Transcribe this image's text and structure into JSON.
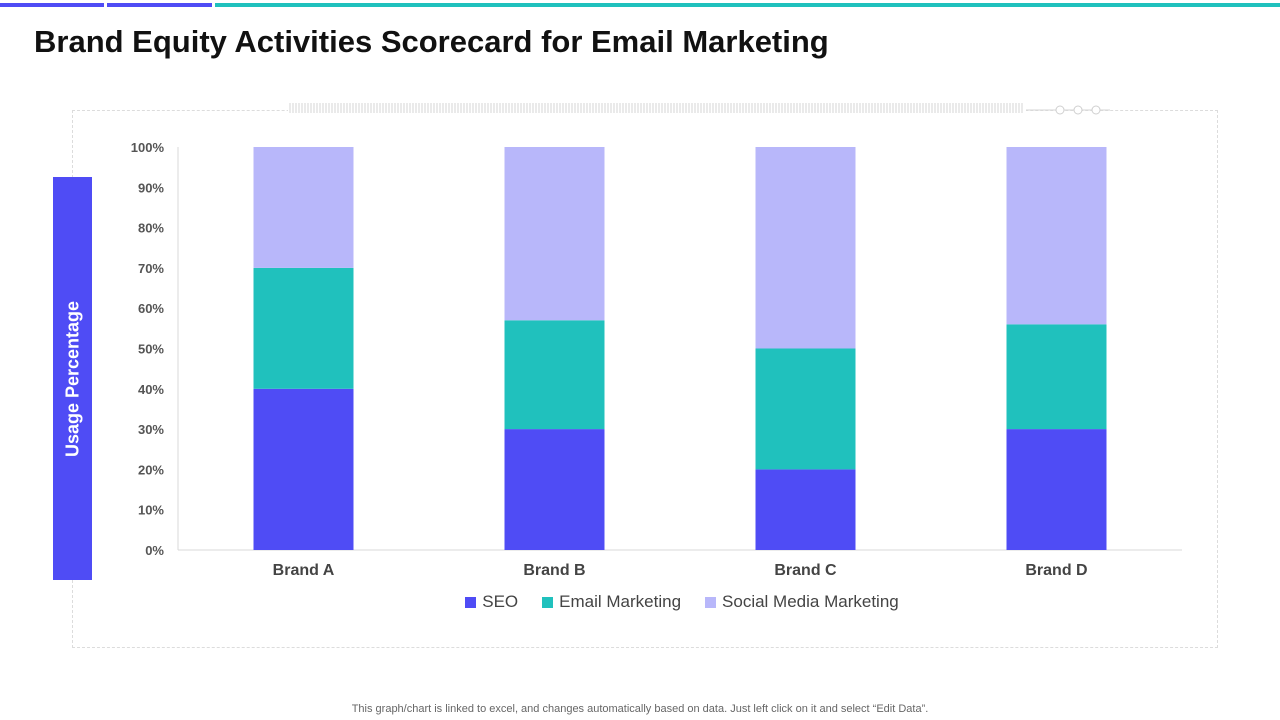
{
  "page": {
    "title": "Brand Equity Activities Scorecard for Email Marketing",
    "footer_note": "This graph/chart is linked to excel,  and changes automatically based on data. Just left click on it and select “Edit Data”."
  },
  "colors": {
    "seo": "#4f4cf5",
    "email": "#20c1bd",
    "social": "#b8b7fa",
    "topbar_purple": "#4f4cf5",
    "topbar_teal": "#20c1bd",
    "axis_label_bg": "#4f4cf5"
  },
  "chart_data": {
    "type": "bar",
    "stacked": true,
    "percent": true,
    "title": "",
    "xlabel": "",
    "ylabel": "Usage Percentage",
    "ylim": [
      0,
      100
    ],
    "yticks": [
      0,
      10,
      20,
      30,
      40,
      50,
      60,
      70,
      80,
      90,
      100
    ],
    "ytick_labels": [
      "0%",
      "10%",
      "20%",
      "30%",
      "40%",
      "50%",
      "60%",
      "70%",
      "80%",
      "90%",
      "100%"
    ],
    "categories": [
      "Brand A",
      "Brand B",
      "Brand C",
      "Brand D"
    ],
    "series": [
      {
        "name": "SEO",
        "values": [
          40,
          30,
          20,
          30
        ]
      },
      {
        "name": "Email Marketing",
        "values": [
          30,
          27,
          30,
          26
        ]
      },
      {
        "name": "Social Media Marketing",
        "values": [
          30,
          43,
          50,
          44
        ]
      }
    ],
    "legend_position": "bottom"
  }
}
